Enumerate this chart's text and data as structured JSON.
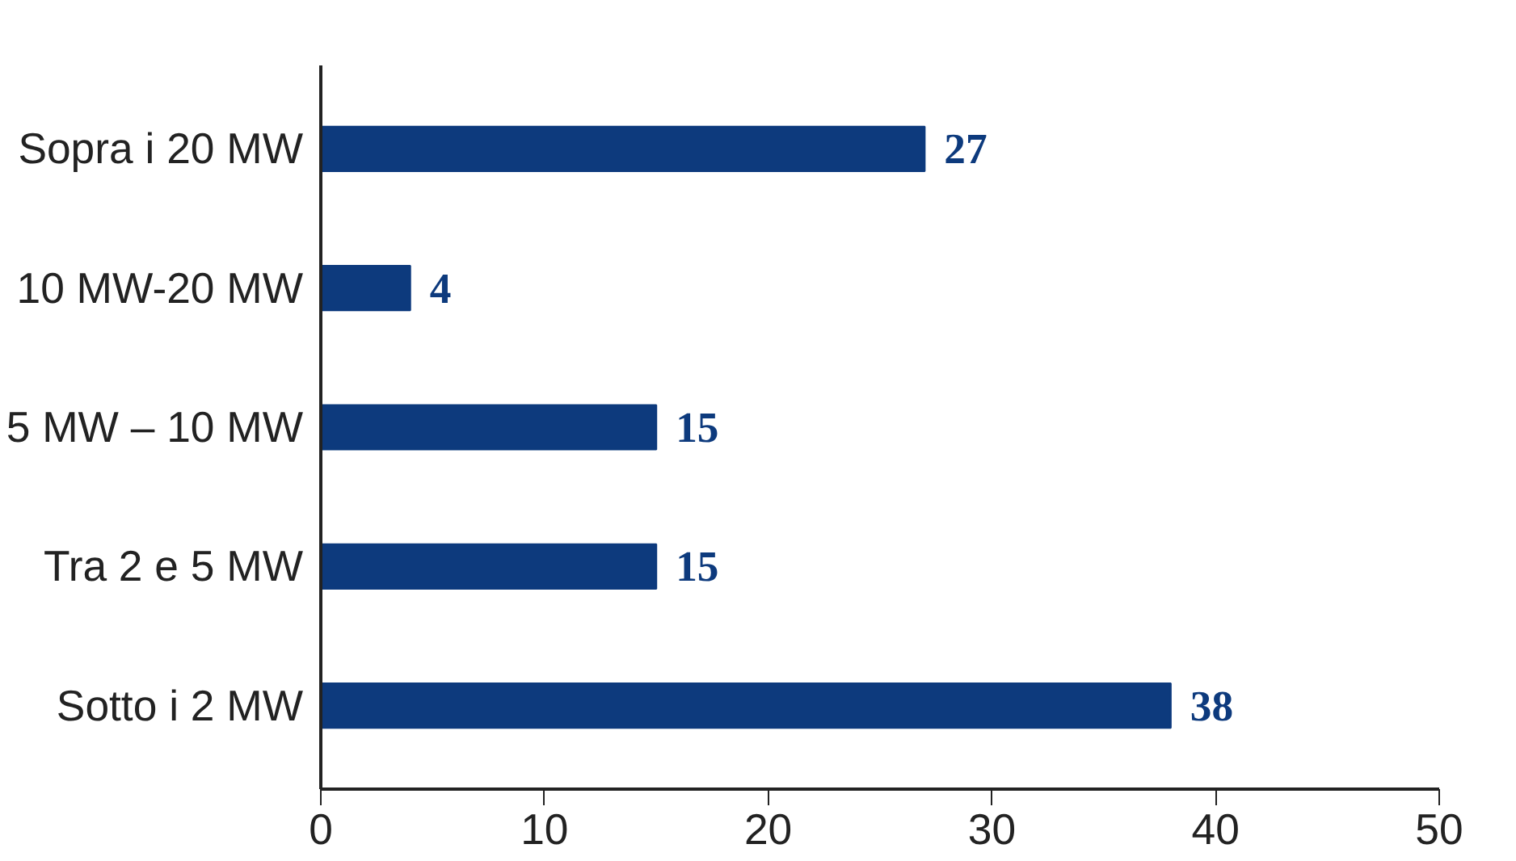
{
  "chart_data": {
    "type": "bar",
    "orientation": "horizontal",
    "categories": [
      "Sopra i 20 MW",
      "10 MW-20 MW",
      "5 MW – 10 MW",
      "Tra 2 e 5 MW",
      "Sotto i 2 MW"
    ],
    "values": [
      27,
      4,
      15,
      15,
      38
    ],
    "color": "#0d3a7d",
    "xlim": [
      0,
      50
    ],
    "xticks": [
      0,
      10,
      20,
      30,
      40,
      50
    ],
    "grid": false,
    "data_labels": true
  }
}
